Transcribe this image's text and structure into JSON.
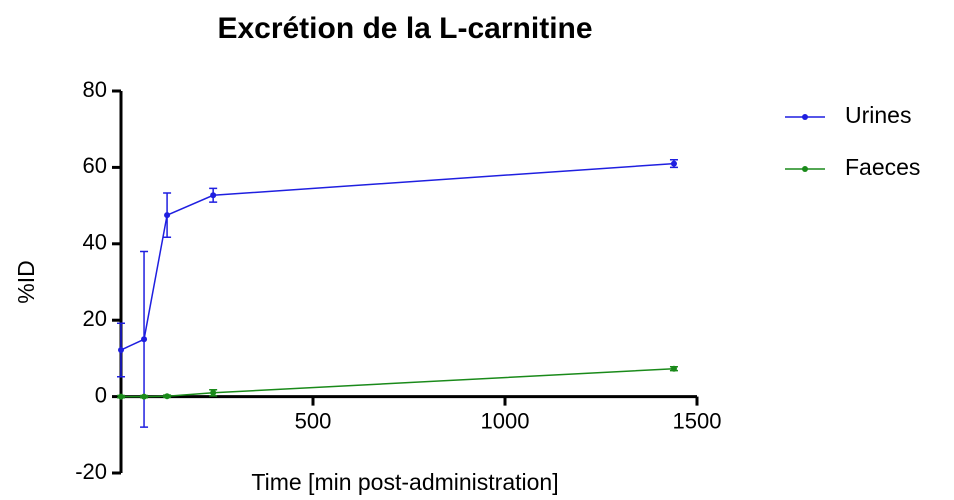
{
  "chart_data": {
    "type": "line",
    "title": "Excrétion de la L-carnitine",
    "xlabel": "Time [min post-administration]",
    "ylabel": "%ID",
    "x": [
      0,
      60,
      120,
      240,
      1440
    ],
    "series": [
      {
        "name": "Urines",
        "color": "#1f1fe0",
        "values": [
          12.2,
          15,
          47.5,
          52.7,
          61
        ],
        "errors": [
          7,
          23,
          5.8,
          1.8,
          1
        ]
      },
      {
        "name": "Faeces",
        "color": "#1a8a1a",
        "values": [
          0,
          0,
          0.1,
          1,
          7.3
        ],
        "errors": [
          0.3,
          0.3,
          0.3,
          0.8,
          0.5
        ]
      }
    ],
    "xlim": [
      0,
      1500
    ],
    "xticks": [
      500,
      1000,
      1500
    ],
    "ylim": [
      -20,
      80
    ],
    "yticks": [
      -20,
      0,
      20,
      40,
      60,
      80
    ],
    "legend": "right"
  }
}
